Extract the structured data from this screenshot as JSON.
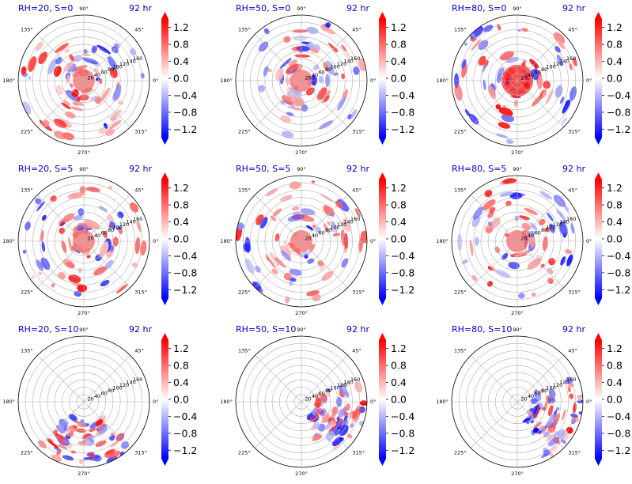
{
  "chart_data": {
    "type": "heatmap",
    "projection": "polar",
    "layout": "3x3 grid of polar panels",
    "angle_ticks_deg": [
      "90°",
      "45°",
      "0°",
      "315°",
      "270°",
      "225°",
      "180°",
      "135°"
    ],
    "radius_ticks": [
      "20",
      "40",
      "60",
      "80",
      "100",
      "120",
      "140",
      "160"
    ],
    "rlim": [
      0,
      180
    ],
    "grid": true,
    "colormap": "bwr",
    "colors": {
      "negative": "#0000ff",
      "zero": "#ffffff",
      "positive": "#ff0000",
      "title_color": "#0000cc"
    },
    "colorbar": {
      "ticks": [
        "1.2",
        "0.8",
        "0.4",
        "0.0",
        "−0.4",
        "−0.8",
        "−1.2"
      ],
      "range": [
        -1.4,
        1.4
      ],
      "extend": "both"
    },
    "panels": [
      {
        "title_left": "RH=20, S=0",
        "title_right": "92 hr"
      },
      {
        "title_left": "RH=50, S=0",
        "title_right": "92 hr"
      },
      {
        "title_left": "RH=80, S=0",
        "title_right": "92 hr"
      },
      {
        "title_left": "RH=20, S=5",
        "title_right": "92 hr"
      },
      {
        "title_left": "RH=50, S=5",
        "title_right": "92 hr"
      },
      {
        "title_left": "RH=80, S=5",
        "title_right": "92 hr"
      },
      {
        "title_left": "RH=20, S=10",
        "title_right": "92 hr"
      },
      {
        "title_left": "RH=50, S=10",
        "title_right": "92 hr"
      },
      {
        "title_left": "RH=80, S=10",
        "title_right": "92 hr"
      }
    ]
  }
}
